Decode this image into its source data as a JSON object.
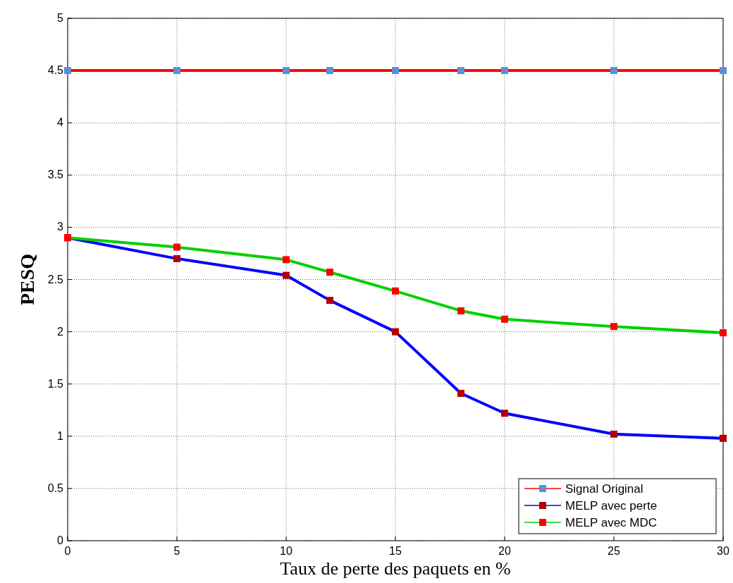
{
  "chart_data": {
    "type": "line",
    "xlabel": "Taux de perte des paquets en %",
    "ylabel": "PESQ",
    "x": [
      0,
      5,
      10,
      12,
      15,
      18,
      20,
      25,
      30
    ],
    "series": [
      {
        "name": "Signal Original",
        "color": "#ff0000",
        "colors": [
          "#5b8fd6",
          "#5b8fd6",
          "#5b8fd6",
          "#5b8fd6",
          "#5b8fd6",
          "#5b8fd6",
          "#5b8fd6",
          "#5b8fd6",
          "#5b8fd6"
        ],
        "values": [
          4.5,
          4.5,
          4.5,
          4.5,
          4.5,
          4.5,
          4.5,
          4.5,
          4.5
        ]
      },
      {
        "name": "MELP avec perte",
        "color": "#0000ff",
        "colors": [
          "#b00000",
          "#b00000",
          "#b00000",
          "#b00000",
          "#b00000",
          "#b00000",
          "#b00000",
          "#b00000",
          "#b00000"
        ],
        "values": [
          2.9,
          2.7,
          2.54,
          2.3,
          2.0,
          1.41,
          1.22,
          1.02,
          0.98
        ]
      },
      {
        "name": "MELP avec MDC",
        "color": "#00d000",
        "colors": [
          "#ff0000",
          "#ff0000",
          "#ff0000",
          "#ff0000",
          "#ff0000",
          "#ff0000",
          "#ff0000",
          "#ff0000",
          "#ff0000"
        ],
        "values": [
          2.9,
          2.81,
          2.69,
          2.57,
          2.39,
          2.2,
          2.12,
          2.05,
          1.99
        ]
      }
    ],
    "xlim": [
      0,
      30
    ],
    "xticks": [
      0,
      5,
      10,
      15,
      20,
      25,
      30
    ],
    "ylim": [
      0,
      5
    ],
    "yticks": [
      0,
      0.5,
      1,
      1.5,
      2,
      2.5,
      3,
      3.5,
      4,
      4.5,
      5
    ],
    "grid": true,
    "legend": "bottom right",
    "marker": "square",
    "line_style": "solid"
  }
}
